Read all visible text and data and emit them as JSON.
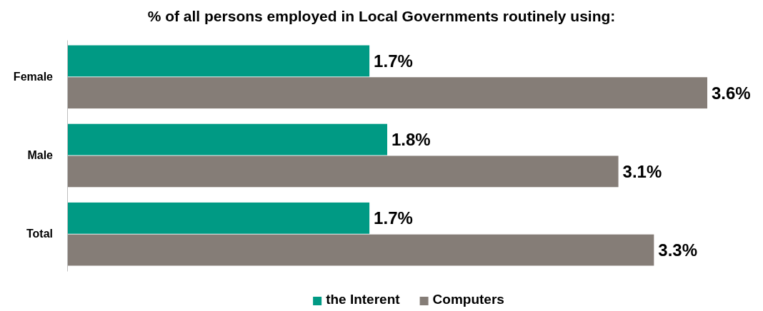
{
  "chart_data": {
    "type": "bar",
    "orientation": "horizontal",
    "title": "% of all persons employed in Local Governments routinely using:",
    "categories": [
      "Female",
      "Male",
      "Total"
    ],
    "series": [
      {
        "name": "the Interent",
        "color": "#009a84",
        "values": [
          1.7,
          1.8,
          1.7
        ],
        "value_labels": [
          "1.7%",
          "1.8%",
          "1.7%"
        ]
      },
      {
        "name": "Computers",
        "color": "#857d77",
        "values": [
          3.6,
          3.1,
          3.3
        ],
        "value_labels": [
          "3.6%",
          "3.1%",
          "3.3%"
        ]
      }
    ],
    "legend": "bottom"
  }
}
